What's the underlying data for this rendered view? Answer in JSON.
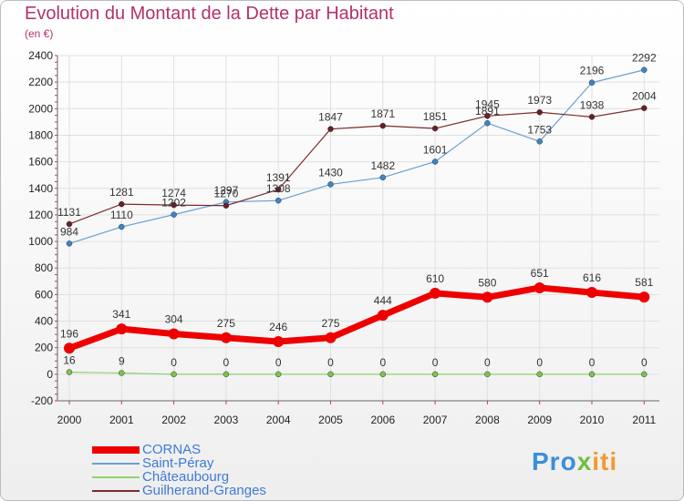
{
  "header": {
    "title": "Evolution du Montant de la Dette par Habitant",
    "subtitle": "(en €)"
  },
  "logo": {
    "text": "Proxiti",
    "part1": "Pro",
    "part2": "x",
    "part3": "iti"
  },
  "colors": {
    "title": "#b2326b",
    "axis": "#666666",
    "grid": "#e0e0e0",
    "legend_text": "#3f7ad6"
  },
  "chart_data": {
    "type": "line",
    "title": "Evolution du Montant de la Dette par Habitant",
    "ylabel": "(en €)",
    "xlabel": "",
    "ylim": [
      -200,
      2400
    ],
    "yticks": [
      -200,
      0,
      200,
      400,
      600,
      800,
      1000,
      1200,
      1400,
      1600,
      1800,
      2000,
      2200,
      2400
    ],
    "grid": true,
    "legend_position": "bottom-left",
    "categories": [
      "2000",
      "2001",
      "2002",
      "2003",
      "2004",
      "2005",
      "2006",
      "2007",
      "2008",
      "2009",
      "2010",
      "2011"
    ],
    "series": [
      {
        "name": "Saint-Péray",
        "color": "#6a9fd0",
        "marker": "#3d85c6",
        "width": 1.2,
        "values": [
          984,
          1110,
          1202,
          1297,
          1308,
          1430,
          1482,
          1601,
          1891,
          1753,
          2196,
          2292
        ]
      },
      {
        "name": "Guilherand-Granges",
        "color": "#7a2a30",
        "marker": "#6a1e26",
        "width": 1.2,
        "values": [
          1131,
          1281,
          1274,
          1270,
          1391,
          1847,
          1871,
          1851,
          1945,
          1973,
          1938,
          2004
        ]
      },
      {
        "name": "Châteaubourg",
        "color": "#8fd46a",
        "marker": "#7cc44d",
        "width": 1.2,
        "values": [
          16,
          9,
          0,
          0,
          0,
          0,
          0,
          0,
          0,
          0,
          0,
          0
        ]
      },
      {
        "name": "CORNAS",
        "color": "#ee0000",
        "marker": "#ee0000",
        "width": 7,
        "values": [
          196,
          341,
          304,
          275,
          246,
          275,
          444,
          610,
          580,
          651,
          616,
          581
        ]
      }
    ],
    "legend_order": [
      "CORNAS",
      "Saint-Péray",
      "Châteaubourg",
      "Guilherand-Granges"
    ]
  }
}
